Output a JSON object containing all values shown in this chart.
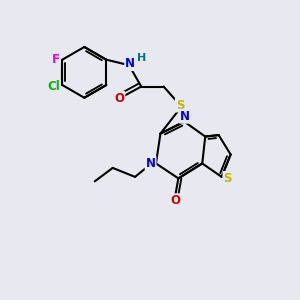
{
  "background_color": "#e8e8f0",
  "atom_colors": {
    "F": "#ee00ee",
    "Cl": "#00bb00",
    "N": "#0000ee",
    "O": "#cc0000",
    "S": "#bbbb00",
    "H": "#007777",
    "C": "#000000"
  },
  "bond_color": "#000000",
  "bond_width": 1.5,
  "figsize": [
    3.0,
    3.0
  ],
  "dpi": 100
}
